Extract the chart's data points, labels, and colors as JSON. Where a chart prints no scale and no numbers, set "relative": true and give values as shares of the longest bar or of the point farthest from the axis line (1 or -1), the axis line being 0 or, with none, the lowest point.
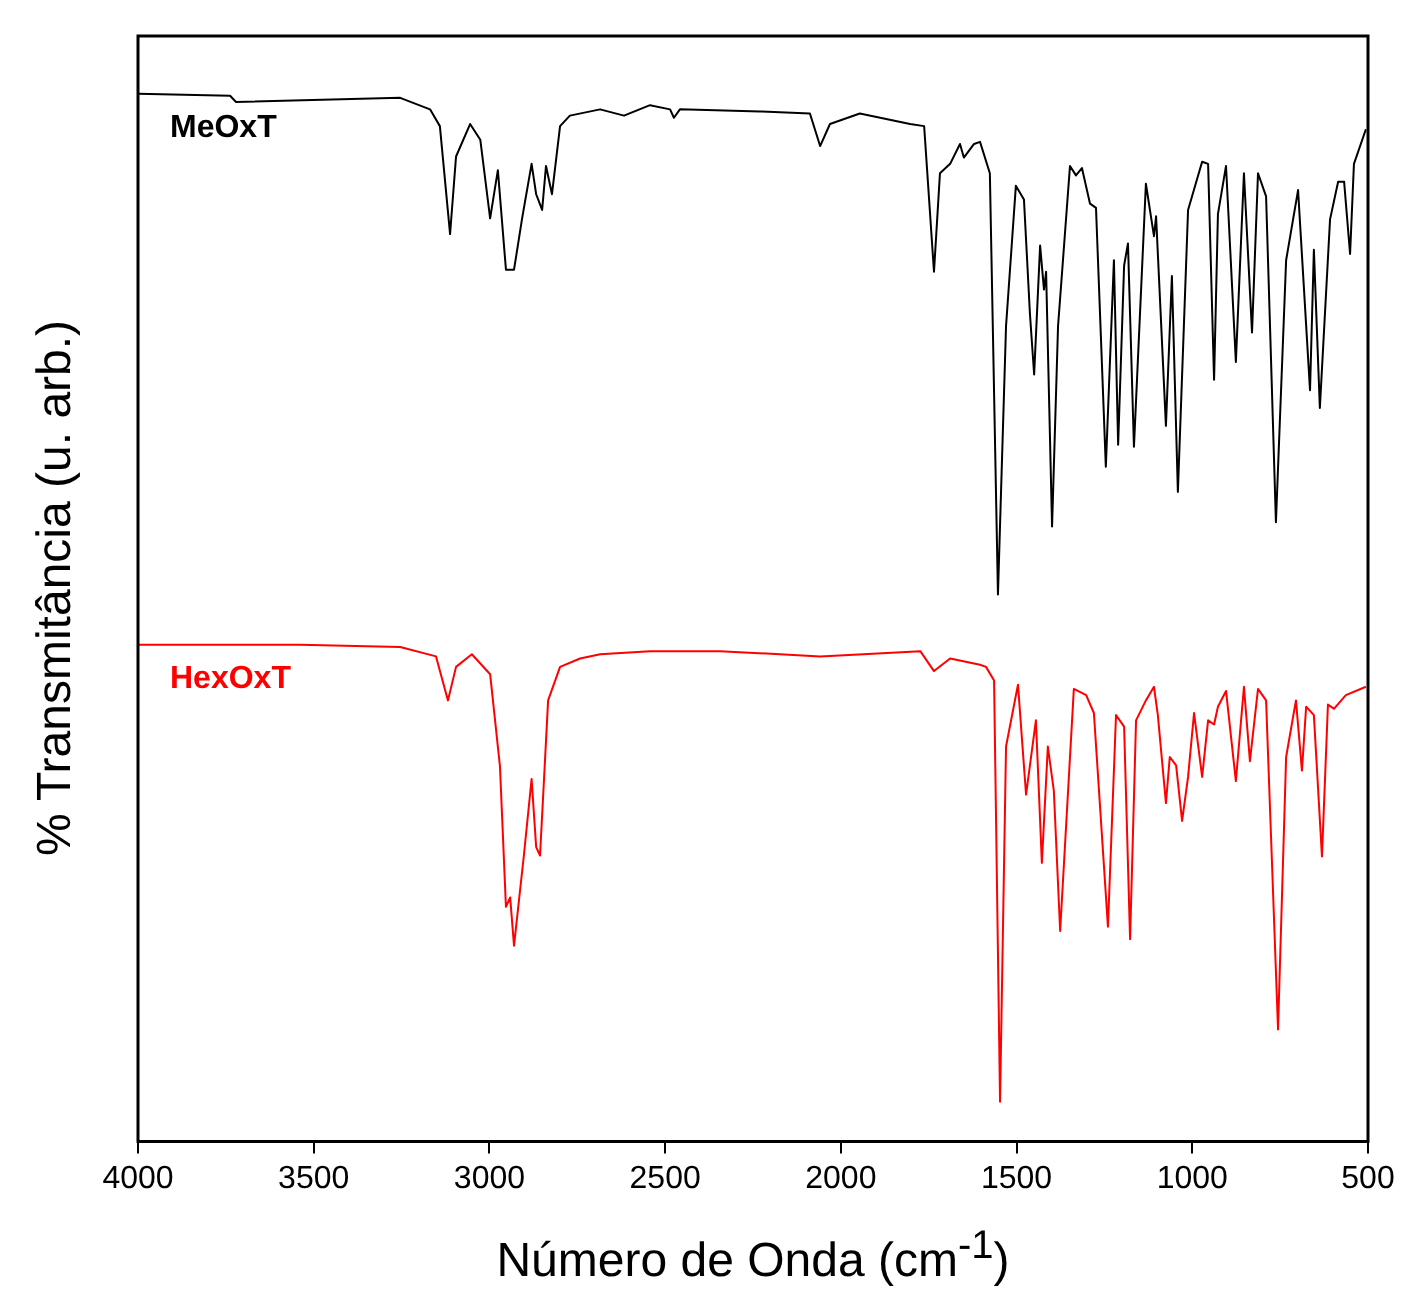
{
  "chart_data": {
    "type": "line",
    "xlabel": "Número de Onda (cm$^{-1}$)",
    "ylabel": "% Transmitância (u. arb.)",
    "relative": true,
    "xlim": [
      4000,
      500
    ],
    "xticks": [
      4000,
      3500,
      3000,
      2500,
      2000,
      1500,
      1000,
      500
    ],
    "tick_labels": "x",
    "legend": false,
    "grid": false,
    "marker": "none",
    "line_style": "solid",
    "series": [
      {
        "name": "MeOxT",
        "color": "#000000",
        "x": [
          4000,
          3738,
          3721,
          3254,
          3169,
          3141,
          3112,
          3095,
          3055,
          3026,
          2998,
          2976,
          2953,
          2930,
          2907,
          2880,
          2867,
          2850,
          2839,
          2822,
          2799,
          2771,
          2685,
          2617,
          2543,
          2486,
          2475,
          2458,
          2230,
          2088,
          2059,
          2031,
          1946,
          1803,
          1763,
          1735,
          1718,
          1689,
          1661,
          1650,
          1621,
          1604,
          1576,
          1553,
          1530,
          1502,
          1479,
          1462,
          1450,
          1433,
          1422,
          1416,
          1399,
          1382,
          1348,
          1331,
          1314,
          1291,
          1274,
          1246,
          1223,
          1211,
          1194,
          1183,
          1166,
          1132,
          1109,
          1103,
          1075,
          1058,
          1041,
          1012,
          972,
          955,
          938,
          927,
          904,
          876,
          853,
          830,
          813,
          790,
          762,
          733,
          699,
          665,
          654,
          637,
          608,
          585,
          568,
          551,
          540,
          506
        ],
        "values": [
          1.0,
          0.998,
          0.992,
          0.996,
          0.985,
          0.969,
          0.866,
          0.94,
          0.971,
          0.956,
          0.881,
          0.927,
          0.832,
          0.832,
          0.881,
          0.933,
          0.904,
          0.889,
          0.931,
          0.904,
          0.969,
          0.979,
          0.985,
          0.979,
          0.989,
          0.985,
          0.977,
          0.985,
          0.983,
          0.981,
          0.95,
          0.971,
          0.981,
          0.971,
          0.969,
          0.83,
          0.924,
          0.933,
          0.952,
          0.939,
          0.952,
          0.954,
          0.924,
          0.522,
          0.778,
          0.912,
          0.899,
          0.79,
          0.732,
          0.855,
          0.813,
          0.83,
          0.587,
          0.778,
          0.931,
          0.922,
          0.929,
          0.895,
          0.891,
          0.644,
          0.841,
          0.665,
          0.836,
          0.857,
          0.663,
          0.914,
          0.864,
          0.883,
          0.683,
          0.826,
          0.62,
          0.889,
          0.935,
          0.933,
          0.727,
          0.885,
          0.931,
          0.744,
          0.924,
          0.772,
          0.924,
          0.902,
          0.591,
          0.841,
          0.908,
          0.717,
          0.851,
          0.7,
          0.88,
          0.916,
          0.916,
          0.847,
          0.933,
          0.966
        ]
      },
      {
        "name": "HexOxT",
        "color": "#ff0000",
        "x": [
          4000,
          3539,
          3254,
          3152,
          3118,
          3095,
          3050,
          2998,
          2970,
          2953,
          2941,
          2930,
          2902,
          2880,
          2867,
          2856,
          2833,
          2799,
          2742,
          2685,
          2543,
          2344,
          2059,
          1774,
          1735,
          1689,
          1604,
          1587,
          1564,
          1547,
          1530,
          1496,
          1473,
          1445,
          1428,
          1411,
          1394,
          1376,
          1337,
          1302,
          1280,
          1240,
          1217,
          1194,
          1177,
          1160,
          1132,
          1109,
          1098,
          1075,
          1064,
          1046,
          1029,
          1012,
          995,
          972,
          955,
          938,
          927,
          904,
          876,
          853,
          836,
          813,
          790,
          756,
          733,
          705,
          688,
          676,
          654,
          631,
          614,
          597,
          563,
          506
        ],
        "values": [
          0.474,
          0.474,
          0.472,
          0.463,
          0.421,
          0.453,
          0.465,
          0.446,
          0.358,
          0.224,
          0.233,
          0.187,
          0.273,
          0.346,
          0.281,
          0.273,
          0.421,
          0.453,
          0.461,
          0.465,
          0.468,
          0.468,
          0.463,
          0.468,
          0.449,
          0.461,
          0.455,
          0.453,
          0.44,
          0.038,
          0.377,
          0.436,
          0.331,
          0.402,
          0.266,
          0.377,
          0.335,
          0.201,
          0.432,
          0.426,
          0.409,
          0.205,
          0.407,
          0.396,
          0.193,
          0.402,
          0.421,
          0.434,
          0.407,
          0.323,
          0.367,
          0.359,
          0.306,
          0.348,
          0.409,
          0.348,
          0.402,
          0.398,
          0.415,
          0.43,
          0.344,
          0.434,
          0.363,
          0.432,
          0.421,
          0.107,
          0.367,
          0.421,
          0.354,
          0.415,
          0.407,
          0.272,
          0.417,
          0.413,
          0.426,
          0.434
        ]
      }
    ]
  }
}
